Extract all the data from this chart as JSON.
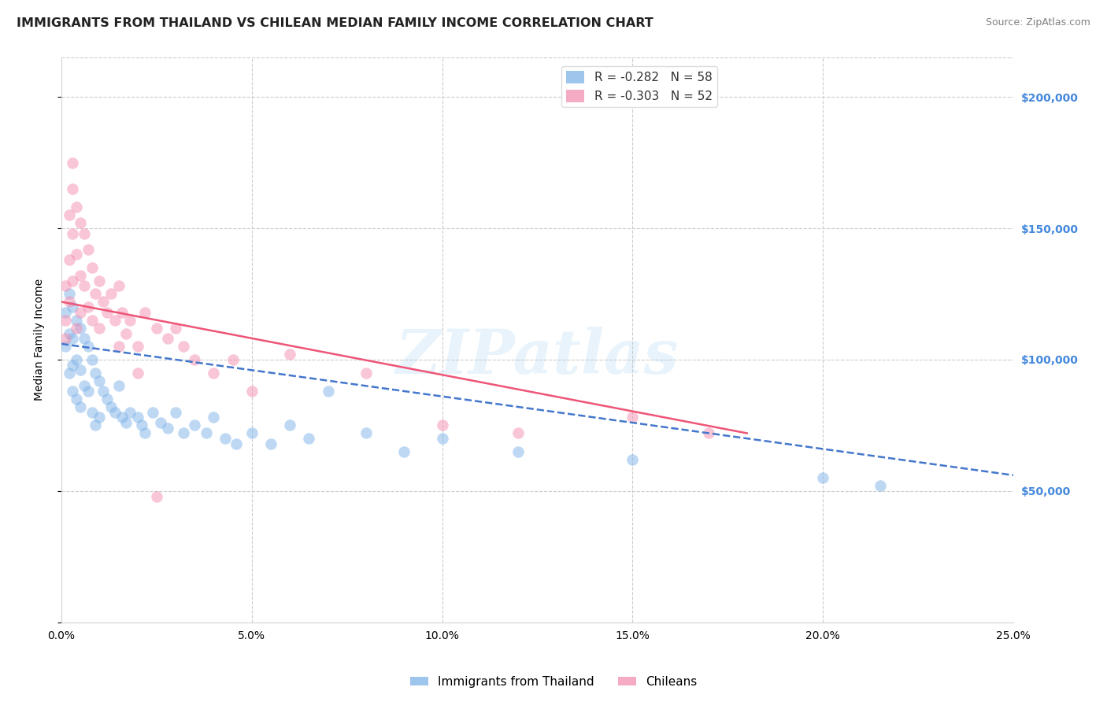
{
  "title": "IMMIGRANTS FROM THAILAND VS CHILEAN MEDIAN FAMILY INCOME CORRELATION CHART",
  "source": "Source: ZipAtlas.com",
  "ylabel": "Median Family Income",
  "yticks": [
    0,
    50000,
    100000,
    150000,
    200000
  ],
  "ytick_labels": [
    "",
    "$50,000",
    "$100,000",
    "$150,000",
    "$200,000"
  ],
  "ylim": [
    0,
    215000
  ],
  "xlim": [
    0.0,
    0.25
  ],
  "legend_r1": "R = -0.282   N = 58",
  "legend_r2": "R = -0.303   N = 52",
  "legend_label1": "Immigrants from Thailand",
  "legend_label2": "Chileans",
  "watermark": "ZIPatlas",
  "blue_color": "#7EB3E8",
  "pink_color": "#F48FB1",
  "blue_line_color": "#4477CC",
  "pink_line_color": "#EE5577",
  "blue_scatter_x": [
    0.001,
    0.001,
    0.002,
    0.002,
    0.002,
    0.003,
    0.003,
    0.003,
    0.003,
    0.004,
    0.004,
    0.004,
    0.005,
    0.005,
    0.005,
    0.006,
    0.006,
    0.007,
    0.007,
    0.008,
    0.008,
    0.009,
    0.009,
    0.01,
    0.01,
    0.011,
    0.012,
    0.013,
    0.014,
    0.015,
    0.016,
    0.017,
    0.018,
    0.02,
    0.021,
    0.022,
    0.024,
    0.026,
    0.028,
    0.03,
    0.032,
    0.035,
    0.038,
    0.04,
    0.043,
    0.046,
    0.05,
    0.055,
    0.06,
    0.065,
    0.07,
    0.08,
    0.09,
    0.1,
    0.12,
    0.15,
    0.2,
    0.215
  ],
  "blue_scatter_y": [
    118000,
    105000,
    125000,
    110000,
    95000,
    120000,
    108000,
    98000,
    88000,
    115000,
    100000,
    85000,
    112000,
    96000,
    82000,
    108000,
    90000,
    105000,
    88000,
    100000,
    80000,
    95000,
    75000,
    92000,
    78000,
    88000,
    85000,
    82000,
    80000,
    90000,
    78000,
    76000,
    80000,
    78000,
    75000,
    72000,
    80000,
    76000,
    74000,
    80000,
    72000,
    75000,
    72000,
    78000,
    70000,
    68000,
    72000,
    68000,
    75000,
    70000,
    88000,
    72000,
    65000,
    70000,
    65000,
    62000,
    55000,
    52000
  ],
  "pink_scatter_x": [
    0.001,
    0.001,
    0.001,
    0.002,
    0.002,
    0.002,
    0.003,
    0.003,
    0.003,
    0.004,
    0.004,
    0.005,
    0.005,
    0.005,
    0.006,
    0.006,
    0.007,
    0.007,
    0.008,
    0.008,
    0.009,
    0.01,
    0.01,
    0.011,
    0.012,
    0.013,
    0.014,
    0.015,
    0.016,
    0.017,
    0.018,
    0.02,
    0.022,
    0.025,
    0.028,
    0.03,
    0.032,
    0.035,
    0.04,
    0.045,
    0.05,
    0.06,
    0.08,
    0.1,
    0.12,
    0.15,
    0.17,
    0.003,
    0.004,
    0.015,
    0.02,
    0.025
  ],
  "pink_scatter_y": [
    128000,
    115000,
    108000,
    155000,
    138000,
    122000,
    165000,
    148000,
    130000,
    158000,
    140000,
    152000,
    132000,
    118000,
    148000,
    128000,
    142000,
    120000,
    135000,
    115000,
    125000,
    130000,
    112000,
    122000,
    118000,
    125000,
    115000,
    128000,
    118000,
    110000,
    115000,
    105000,
    118000,
    112000,
    108000,
    112000,
    105000,
    100000,
    95000,
    100000,
    88000,
    102000,
    95000,
    75000,
    72000,
    78000,
    72000,
    175000,
    112000,
    105000,
    95000,
    48000
  ],
  "blue_trend_x": [
    0.0,
    0.25
  ],
  "blue_trend_y": [
    106000,
    56000
  ],
  "pink_trend_x": [
    0.0,
    0.18
  ],
  "pink_trend_y": [
    122000,
    72000
  ],
  "title_fontsize": 11.5,
  "axis_label_fontsize": 10,
  "tick_fontsize": 10,
  "source_fontsize": 9,
  "legend_fontsize": 11,
  "marker_size": 110,
  "marker_alpha": 0.5,
  "grid_color": "#CCCCCC",
  "background_color": "#FFFFFF",
  "right_tick_color": "#4488DD"
}
